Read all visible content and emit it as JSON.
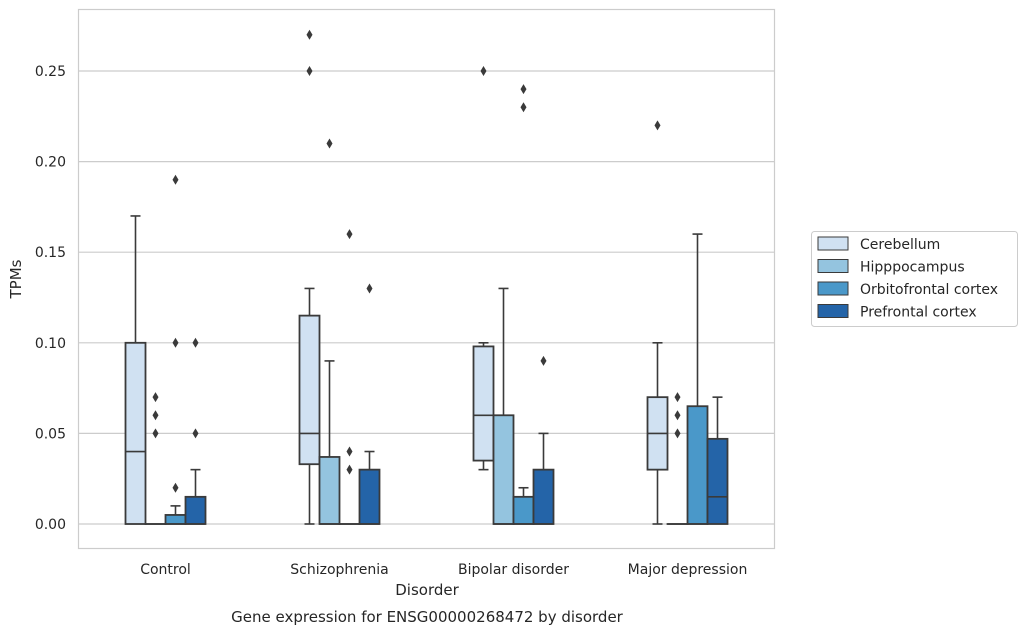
{
  "chart_data": {
    "type": "box",
    "caption": "Gene expression for ENSG00000268472 by disorder",
    "xlabel": "Disorder",
    "ylabel": "TPMs",
    "ylim": [
      -0.013,
      0.284
    ],
    "yticks": [
      0.0,
      0.05,
      0.1,
      0.15,
      0.2,
      0.25
    ],
    "ytick_labels": [
      "0.00",
      "0.05",
      "0.10",
      "0.15",
      "0.20",
      "0.25"
    ],
    "grid": "horizontal",
    "legend_position": "right",
    "categories": [
      "Control",
      "Schizophrenia",
      "Bipolar disorder",
      "Major depression"
    ],
    "series": [
      {
        "name": "Cerebellum",
        "color": "#d0e1f2",
        "boxes": [
          {
            "whisker_low": 0.0,
            "q1": 0.0,
            "median": 0.04,
            "q3": 0.1,
            "whisker_high": 0.17,
            "outliers": []
          },
          {
            "whisker_low": 0.0,
            "q1": 0.033,
            "median": 0.05,
            "q3": 0.115,
            "whisker_high": 0.13,
            "outliers": [
              0.27,
              0.25
            ]
          },
          {
            "whisker_low": 0.03,
            "q1": 0.035,
            "median": 0.06,
            "q3": 0.098,
            "whisker_high": 0.1,
            "outliers": [
              0.25
            ]
          },
          {
            "whisker_low": 0.0,
            "q1": 0.03,
            "median": 0.05,
            "q3": 0.07,
            "whisker_high": 0.1,
            "outliers": [
              0.22
            ]
          }
        ]
      },
      {
        "name": "Hipppocampus",
        "color": "#94c4df",
        "boxes": [
          {
            "whisker_low": 0.0,
            "q1": 0.0,
            "median": 0.0,
            "q3": 0.0,
            "whisker_high": 0.0,
            "outliers": [
              0.07,
              0.06,
              0.05
            ]
          },
          {
            "whisker_low": 0.0,
            "q1": 0.0,
            "median": 0.0,
            "q3": 0.037,
            "whisker_high": 0.09,
            "outliers": [
              0.21
            ]
          },
          {
            "whisker_low": 0.0,
            "q1": 0.0,
            "median": 0.0,
            "q3": 0.06,
            "whisker_high": 0.13,
            "outliers": []
          },
          {
            "whisker_low": 0.0,
            "q1": 0.0,
            "median": 0.0,
            "q3": 0.0,
            "whisker_high": 0.0,
            "outliers": [
              0.07,
              0.06,
              0.05
            ]
          }
        ]
      },
      {
        "name": "Orbitofrontal cortex",
        "color": "#4a98c9",
        "boxes": [
          {
            "whisker_low": 0.0,
            "q1": 0.0,
            "median": 0.0,
            "q3": 0.005,
            "whisker_high": 0.01,
            "outliers": [
              0.19,
              0.1,
              0.02
            ]
          },
          {
            "whisker_low": 0.0,
            "q1": 0.0,
            "median": 0.0,
            "q3": 0.0,
            "whisker_high": 0.0,
            "outliers": [
              0.16,
              0.04,
              0.03
            ]
          },
          {
            "whisker_low": 0.0,
            "q1": 0.0,
            "median": 0.0,
            "q3": 0.015,
            "whisker_high": 0.02,
            "outliers": [
              0.24,
              0.23
            ]
          },
          {
            "whisker_low": 0.0,
            "q1": 0.0,
            "median": 0.0,
            "q3": 0.065,
            "whisker_high": 0.16,
            "outliers": []
          }
        ]
      },
      {
        "name": "Prefrontal cortex",
        "color": "#2464a8",
        "boxes": [
          {
            "whisker_low": 0.0,
            "q1": 0.0,
            "median": 0.0,
            "q3": 0.015,
            "whisker_high": 0.03,
            "outliers": [
              0.1,
              0.05
            ]
          },
          {
            "whisker_low": 0.0,
            "q1": 0.0,
            "median": 0.0,
            "q3": 0.03,
            "whisker_high": 0.04,
            "outliers": [
              0.13
            ]
          },
          {
            "whisker_low": 0.0,
            "q1": 0.0,
            "median": 0.0,
            "q3": 0.03,
            "whisker_high": 0.05,
            "outliers": [
              0.09
            ]
          },
          {
            "whisker_low": 0.0,
            "q1": 0.0,
            "median": 0.015,
            "q3": 0.047,
            "whisker_high": 0.07,
            "outliers": []
          }
        ]
      }
    ]
  }
}
